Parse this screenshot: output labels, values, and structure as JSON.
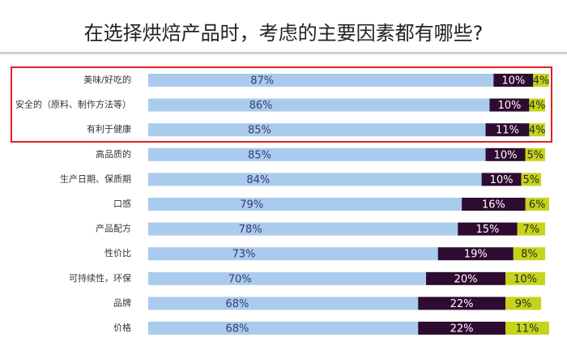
{
  "chart_data": {
    "type": "stacked_bar",
    "title": "在选择烘焙产品时，考虑的主要因素都有哪些?",
    "categories": [
      "美味/好吃的",
      "安全的（原料、制作方法等）",
      "有利于健康",
      "高品质的",
      "生产日期、保质期",
      "口感",
      "产品配方",
      "性价比",
      "可持续性，环保",
      "品牌",
      "价格"
    ],
    "series": [
      {
        "color": "#a9cbee",
        "values": [
          87,
          86,
          85,
          85,
          84,
          79,
          78,
          73,
          70,
          68,
          68
        ],
        "value_labels": [
          "87%",
          "86%",
          "85%",
          "85%",
          "84%",
          "79%",
          "78%",
          "73%",
          "70%",
          "68%",
          "68%"
        ]
      },
      {
        "color": "#2e0b30",
        "values": [
          10,
          10,
          11,
          10,
          10,
          16,
          15,
          19,
          20,
          22,
          22
        ],
        "value_labels": [
          "10%",
          "10%",
          "11%",
          "10%",
          "10%",
          "16%",
          "15%",
          "19%",
          "20%",
          "22%",
          "22%"
        ]
      },
      {
        "color": "#c5d41a",
        "values": [
          4,
          4,
          4,
          5,
          5,
          6,
          7,
          8,
          10,
          9,
          11
        ],
        "value_labels": [
          "4%",
          "4%",
          "4%",
          "5%",
          "5%",
          "6%",
          "7%",
          "8%",
          "10%",
          "9%",
          "11%"
        ]
      }
    ]
  }
}
